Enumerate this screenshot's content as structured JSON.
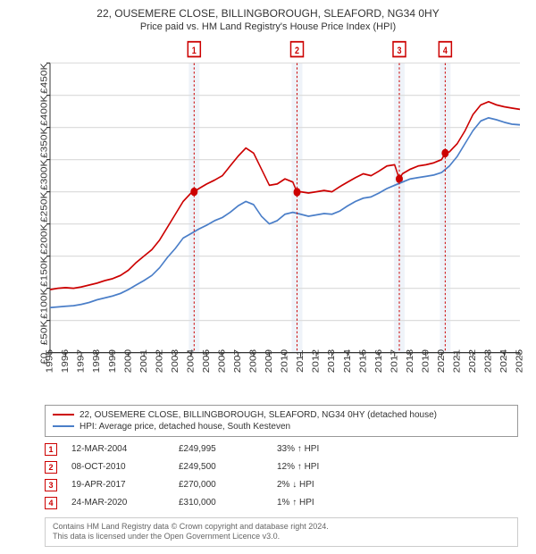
{
  "title": "22, OUSEMERE CLOSE, BILLINGBOROUGH, SLEAFORD, NG34 0HY",
  "subtitle": "Price paid vs. HM Land Registry's House Price Index (HPI)",
  "chart": {
    "type": "line",
    "background_color": "#ffffff",
    "grid_color": "#dddddd",
    "axis_color": "#333333",
    "x": {
      "min": 1995,
      "max": 2025,
      "tick_step": 1,
      "labels": [
        "1995",
        "1996",
        "1997",
        "1998",
        "1999",
        "2000",
        "2001",
        "2002",
        "2003",
        "2004",
        "2005",
        "2006",
        "2007",
        "2008",
        "2009",
        "2010",
        "2011",
        "2012",
        "2013",
        "2014",
        "2015",
        "2016",
        "2017",
        "2018",
        "2019",
        "2020",
        "2021",
        "2022",
        "2023",
        "2024",
        "2025"
      ]
    },
    "y": {
      "min": 0,
      "max": 450000,
      "tick_step": 50000,
      "labels": [
        "£0",
        "£50K",
        "£100K",
        "£150K",
        "£200K",
        "£250K",
        "£300K",
        "£350K",
        "£400K",
        "£450K"
      ],
      "rotation": -90
    },
    "series": [
      {
        "name": "22, OUSEMERE CLOSE, BILLINGBOROUGH, SLEAFORD, NG34 0HY (detached house)",
        "color": "#cc0000",
        "line_width": 1.5,
        "points": [
          [
            1995.0,
            98000
          ],
          [
            1995.5,
            100000
          ],
          [
            1996.0,
            101000
          ],
          [
            1996.5,
            100000
          ],
          [
            1997.0,
            102000
          ],
          [
            1997.5,
            105000
          ],
          [
            1998.0,
            108000
          ],
          [
            1998.5,
            112000
          ],
          [
            1999.0,
            115000
          ],
          [
            1999.5,
            120000
          ],
          [
            2000.0,
            128000
          ],
          [
            2000.5,
            140000
          ],
          [
            2001.0,
            150000
          ],
          [
            2001.5,
            160000
          ],
          [
            2002.0,
            175000
          ],
          [
            2002.5,
            195000
          ],
          [
            2003.0,
            215000
          ],
          [
            2003.5,
            235000
          ],
          [
            2004.0,
            248000
          ],
          [
            2004.2,
            249995
          ],
          [
            2004.5,
            255000
          ],
          [
            2005.0,
            262000
          ],
          [
            2005.5,
            268000
          ],
          [
            2006.0,
            275000
          ],
          [
            2006.5,
            290000
          ],
          [
            2007.0,
            305000
          ],
          [
            2007.5,
            318000
          ],
          [
            2008.0,
            310000
          ],
          [
            2008.5,
            285000
          ],
          [
            2009.0,
            260000
          ],
          [
            2009.5,
            262000
          ],
          [
            2010.0,
            270000
          ],
          [
            2010.5,
            265000
          ],
          [
            2010.77,
            249500
          ],
          [
            2011.0,
            250000
          ],
          [
            2011.5,
            248000
          ],
          [
            2012.0,
            250000
          ],
          [
            2012.5,
            252000
          ],
          [
            2013.0,
            250000
          ],
          [
            2013.5,
            258000
          ],
          [
            2014.0,
            265000
          ],
          [
            2014.5,
            272000
          ],
          [
            2015.0,
            278000
          ],
          [
            2015.5,
            275000
          ],
          [
            2016.0,
            282000
          ],
          [
            2016.5,
            290000
          ],
          [
            2017.0,
            292000
          ],
          [
            2017.3,
            270000
          ],
          [
            2017.5,
            278000
          ],
          [
            2018.0,
            285000
          ],
          [
            2018.5,
            290000
          ],
          [
            2019.0,
            292000
          ],
          [
            2019.5,
            295000
          ],
          [
            2020.0,
            300000
          ],
          [
            2020.23,
            310000
          ],
          [
            2020.5,
            312000
          ],
          [
            2021.0,
            325000
          ],
          [
            2021.5,
            345000
          ],
          [
            2022.0,
            370000
          ],
          [
            2022.5,
            385000
          ],
          [
            2023.0,
            390000
          ],
          [
            2023.5,
            385000
          ],
          [
            2024.0,
            382000
          ],
          [
            2024.5,
            380000
          ],
          [
            2025.0,
            378000
          ]
        ],
        "markers": [
          {
            "x": 2004.2,
            "y": 249995,
            "color": "#cc0000",
            "radius": 4
          },
          {
            "x": 2010.77,
            "y": 249500,
            "color": "#cc0000",
            "radius": 4
          },
          {
            "x": 2017.3,
            "y": 270000,
            "color": "#cc0000",
            "radius": 4
          },
          {
            "x": 2020.23,
            "y": 310000,
            "color": "#cc0000",
            "radius": 4
          }
        ]
      },
      {
        "name": "HPI: Average price, detached house, South Kesteven",
        "color": "#4a7ec8",
        "line_width": 1.5,
        "points": [
          [
            1995.0,
            70000
          ],
          [
            1995.5,
            71000
          ],
          [
            1996.0,
            72000
          ],
          [
            1996.5,
            73000
          ],
          [
            1997.0,
            75000
          ],
          [
            1997.5,
            78000
          ],
          [
            1998.0,
            82000
          ],
          [
            1998.5,
            85000
          ],
          [
            1999.0,
            88000
          ],
          [
            1999.5,
            92000
          ],
          [
            2000.0,
            98000
          ],
          [
            2000.5,
            105000
          ],
          [
            2001.0,
            112000
          ],
          [
            2001.5,
            120000
          ],
          [
            2002.0,
            132000
          ],
          [
            2002.5,
            148000
          ],
          [
            2003.0,
            162000
          ],
          [
            2003.5,
            178000
          ],
          [
            2004.0,
            185000
          ],
          [
            2004.5,
            192000
          ],
          [
            2005.0,
            198000
          ],
          [
            2005.5,
            205000
          ],
          [
            2006.0,
            210000
          ],
          [
            2006.5,
            218000
          ],
          [
            2007.0,
            228000
          ],
          [
            2007.5,
            235000
          ],
          [
            2008.0,
            230000
          ],
          [
            2008.5,
            212000
          ],
          [
            2009.0,
            200000
          ],
          [
            2009.5,
            205000
          ],
          [
            2010.0,
            215000
          ],
          [
            2010.5,
            218000
          ],
          [
            2011.0,
            215000
          ],
          [
            2011.5,
            212000
          ],
          [
            2012.0,
            214000
          ],
          [
            2012.5,
            216000
          ],
          [
            2013.0,
            215000
          ],
          [
            2013.5,
            220000
          ],
          [
            2014.0,
            228000
          ],
          [
            2014.5,
            235000
          ],
          [
            2015.0,
            240000
          ],
          [
            2015.5,
            242000
          ],
          [
            2016.0,
            248000
          ],
          [
            2016.5,
            255000
          ],
          [
            2017.0,
            260000
          ],
          [
            2017.5,
            265000
          ],
          [
            2018.0,
            270000
          ],
          [
            2018.5,
            272000
          ],
          [
            2019.0,
            274000
          ],
          [
            2019.5,
            276000
          ],
          [
            2020.0,
            280000
          ],
          [
            2020.5,
            290000
          ],
          [
            2021.0,
            305000
          ],
          [
            2021.5,
            325000
          ],
          [
            2022.0,
            345000
          ],
          [
            2022.5,
            360000
          ],
          [
            2023.0,
            365000
          ],
          [
            2023.5,
            362000
          ],
          [
            2024.0,
            358000
          ],
          [
            2024.5,
            355000
          ],
          [
            2025.0,
            354000
          ]
        ]
      }
    ],
    "event_bands": [
      {
        "n": "1",
        "x": 2004.2,
        "color": "#cc0000"
      },
      {
        "n": "2",
        "x": 2010.77,
        "color": "#cc0000"
      },
      {
        "n": "3",
        "x": 2017.3,
        "color": "#cc0000"
      },
      {
        "n": "4",
        "x": 2020.23,
        "color": "#cc0000"
      }
    ]
  },
  "legend": [
    {
      "color": "#cc0000",
      "label": "22, OUSEMERE CLOSE, BILLINGBOROUGH, SLEAFORD, NG34 0HY (detached house)"
    },
    {
      "color": "#4a7ec8",
      "label": "HPI: Average price, detached house, South Kesteven"
    }
  ],
  "events": [
    {
      "n": "1",
      "color": "#cc0000",
      "date": "12-MAR-2004",
      "price": "£249,995",
      "delta": "33% ↑ HPI"
    },
    {
      "n": "2",
      "color": "#cc0000",
      "date": "08-OCT-2010",
      "price": "£249,500",
      "delta": "12% ↑ HPI"
    },
    {
      "n": "3",
      "color": "#cc0000",
      "date": "19-APR-2017",
      "price": "£270,000",
      "delta": "2% ↓ HPI"
    },
    {
      "n": "4",
      "color": "#cc0000",
      "date": "24-MAR-2020",
      "price": "£310,000",
      "delta": "1% ↑ HPI"
    }
  ],
  "footnote_line1": "Contains HM Land Registry data © Crown copyright and database right 2024.",
  "footnote_line2": "This data is licensed under the Open Government Licence v3.0."
}
